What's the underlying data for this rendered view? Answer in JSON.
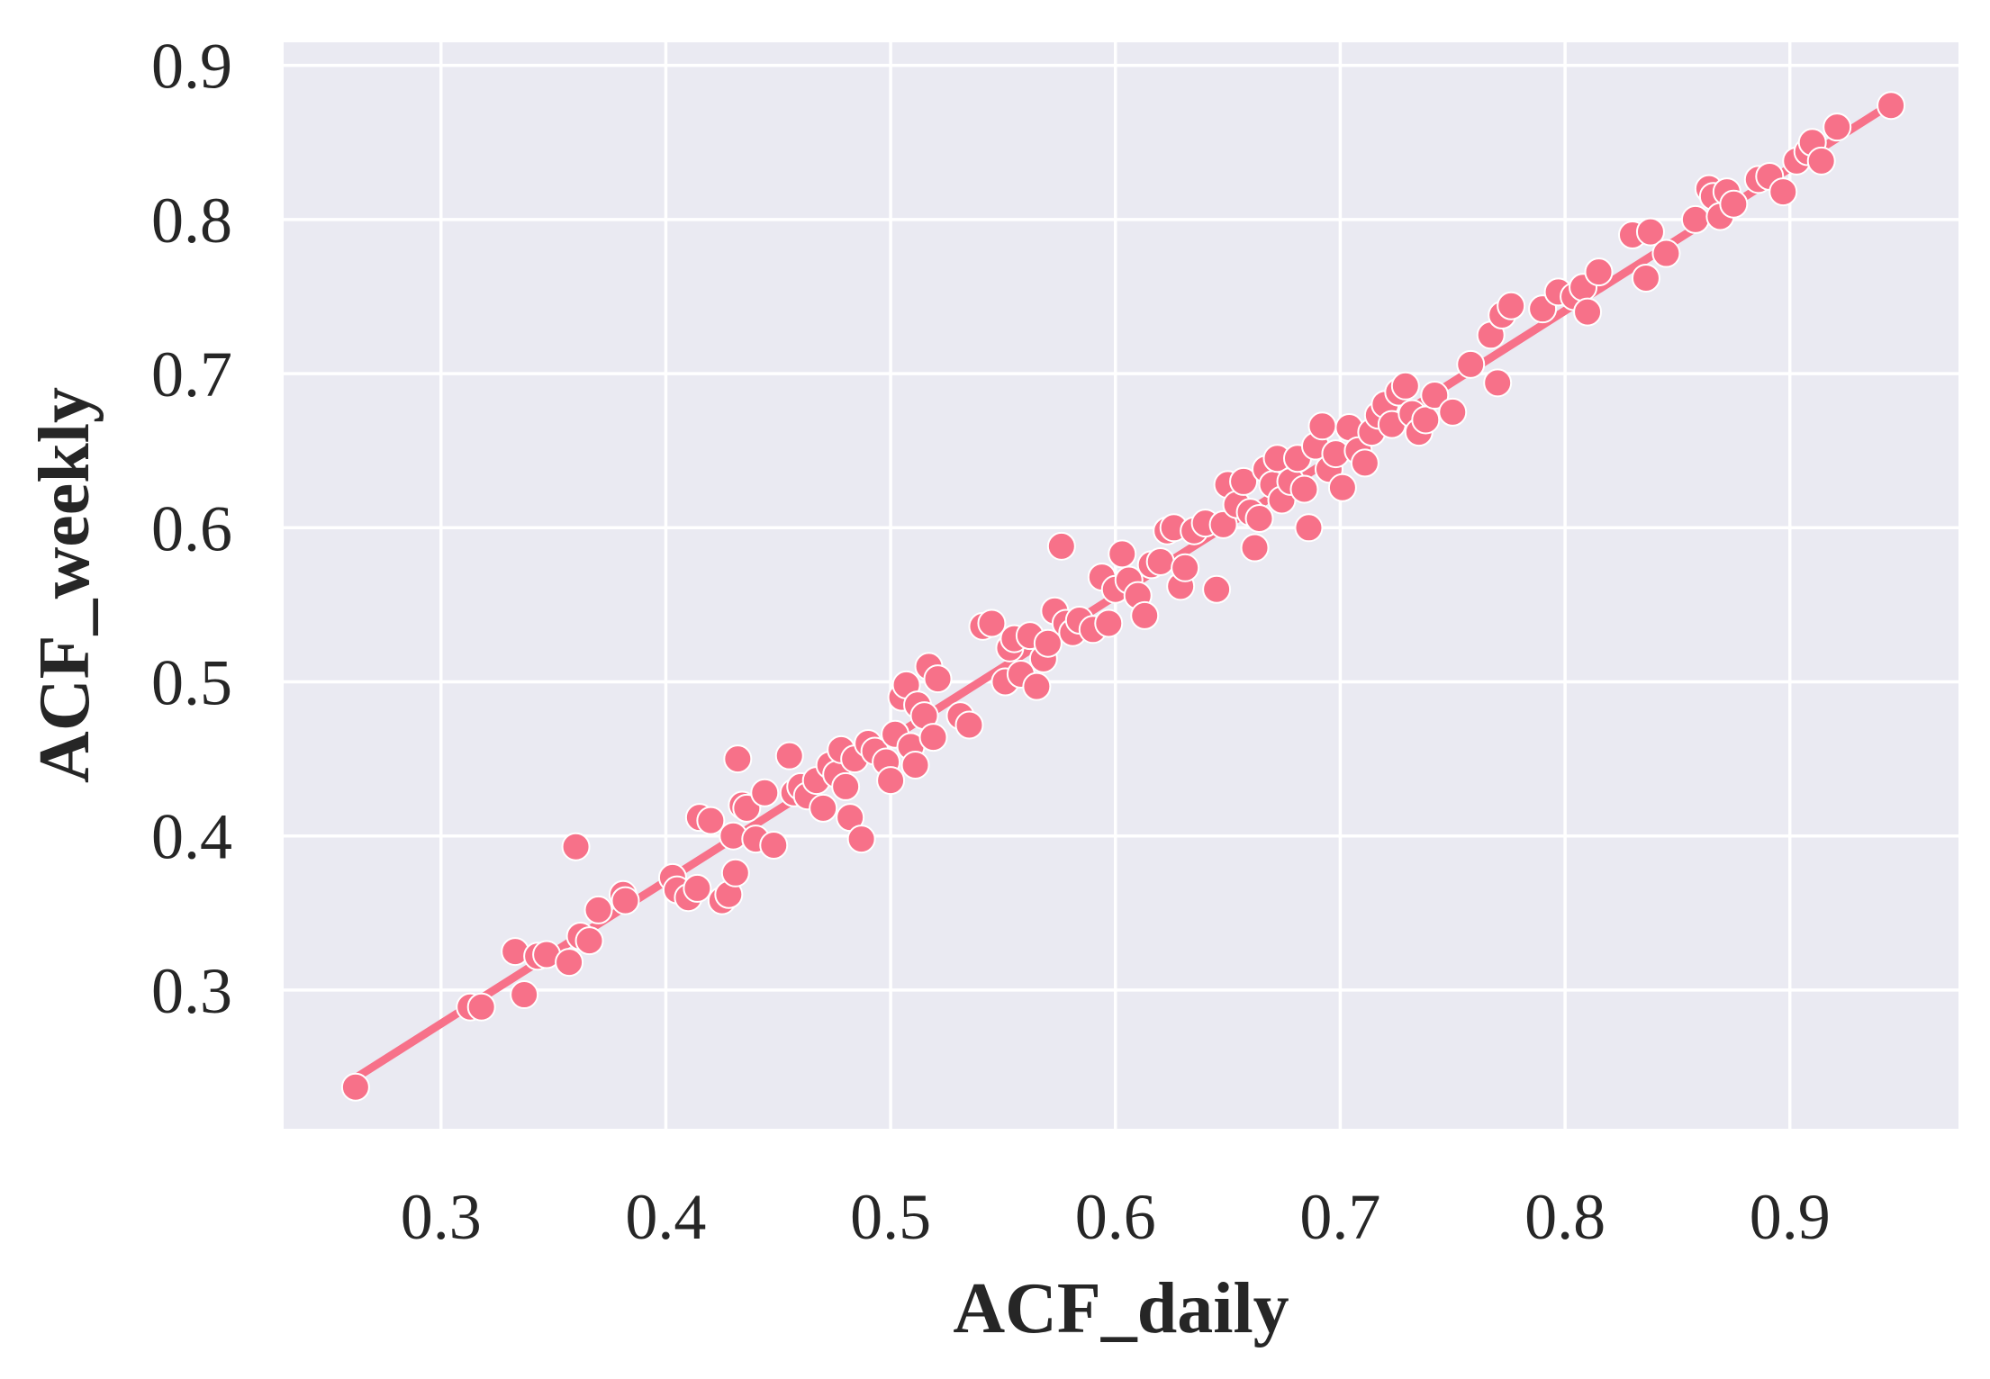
{
  "chart_data": {
    "type": "scatter",
    "xlabel": "ACF_daily",
    "ylabel": "ACF_weekly",
    "xlim": [
      0.23,
      0.975
    ],
    "ylim": [
      0.21,
      0.915
    ],
    "xticks": [
      0.3,
      0.4,
      0.5,
      0.6,
      0.7,
      0.8,
      0.9
    ],
    "yticks": [
      0.3,
      0.4,
      0.5,
      0.6,
      0.7,
      0.8,
      0.9
    ],
    "xtick_labels": [
      "0.3",
      "0.4",
      "0.5",
      "0.6",
      "0.7",
      "0.8",
      "0.9"
    ],
    "ytick_labels": [
      "0.3",
      "0.4",
      "0.5",
      "0.6",
      "0.7",
      "0.8",
      "0.9"
    ],
    "grid": true,
    "legend": "none",
    "colors": {
      "background": "#eaeaf2",
      "grid": "#ffffff",
      "point": "#f77189",
      "point_edge": "#ffffff",
      "line": "#f77189"
    },
    "trend_line": {
      "x": [
        0.262,
        0.945
      ],
      "y": [
        0.243,
        0.875
      ]
    },
    "points": [
      [
        0.262,
        0.237
      ],
      [
        0.313,
        0.289
      ],
      [
        0.318,
        0.289
      ],
      [
        0.333,
        0.325
      ],
      [
        0.337,
        0.297
      ],
      [
        0.343,
        0.322
      ],
      [
        0.347,
        0.323
      ],
      [
        0.357,
        0.318
      ],
      [
        0.36,
        0.393
      ],
      [
        0.362,
        0.335
      ],
      [
        0.366,
        0.332
      ],
      [
        0.37,
        0.352
      ],
      [
        0.381,
        0.362
      ],
      [
        0.382,
        0.358
      ],
      [
        0.403,
        0.373
      ],
      [
        0.405,
        0.365
      ],
      [
        0.41,
        0.36
      ],
      [
        0.414,
        0.366
      ],
      [
        0.415,
        0.412
      ],
      [
        0.42,
        0.41
      ],
      [
        0.425,
        0.358
      ],
      [
        0.428,
        0.362
      ],
      [
        0.43,
        0.4
      ],
      [
        0.431,
        0.376
      ],
      [
        0.432,
        0.45
      ],
      [
        0.434,
        0.42
      ],
      [
        0.436,
        0.418
      ],
      [
        0.44,
        0.398
      ],
      [
        0.444,
        0.428
      ],
      [
        0.448,
        0.394
      ],
      [
        0.455,
        0.452
      ],
      [
        0.457,
        0.428
      ],
      [
        0.46,
        0.432
      ],
      [
        0.463,
        0.426
      ],
      [
        0.467,
        0.436
      ],
      [
        0.47,
        0.418
      ],
      [
        0.473,
        0.446
      ],
      [
        0.476,
        0.44
      ],
      [
        0.478,
        0.456
      ],
      [
        0.48,
        0.432
      ],
      [
        0.482,
        0.412
      ],
      [
        0.484,
        0.45
      ],
      [
        0.487,
        0.398
      ],
      [
        0.49,
        0.46
      ],
      [
        0.493,
        0.455
      ],
      [
        0.498,
        0.448
      ],
      [
        0.5,
        0.436
      ],
      [
        0.502,
        0.466
      ],
      [
        0.505,
        0.49
      ],
      [
        0.507,
        0.498
      ],
      [
        0.509,
        0.458
      ],
      [
        0.511,
        0.446
      ],
      [
        0.512,
        0.485
      ],
      [
        0.515,
        0.478
      ],
      [
        0.517,
        0.51
      ],
      [
        0.519,
        0.464
      ],
      [
        0.521,
        0.502
      ],
      [
        0.531,
        0.478
      ],
      [
        0.535,
        0.472
      ],
      [
        0.541,
        0.536
      ],
      [
        0.545,
        0.538
      ],
      [
        0.551,
        0.5
      ],
      [
        0.553,
        0.522
      ],
      [
        0.555,
        0.528
      ],
      [
        0.558,
        0.505
      ],
      [
        0.562,
        0.53
      ],
      [
        0.565,
        0.497
      ],
      [
        0.568,
        0.515
      ],
      [
        0.57,
        0.525
      ],
      [
        0.573,
        0.546
      ],
      [
        0.576,
        0.588
      ],
      [
        0.578,
        0.538
      ],
      [
        0.581,
        0.532
      ],
      [
        0.584,
        0.54
      ],
      [
        0.59,
        0.534
      ],
      [
        0.594,
        0.568
      ],
      [
        0.597,
        0.538
      ],
      [
        0.6,
        0.56
      ],
      [
        0.603,
        0.583
      ],
      [
        0.606,
        0.566
      ],
      [
        0.61,
        0.556
      ],
      [
        0.613,
        0.543
      ],
      [
        0.616,
        0.576
      ],
      [
        0.62,
        0.578
      ],
      [
        0.623,
        0.598
      ],
      [
        0.626,
        0.6
      ],
      [
        0.629,
        0.562
      ],
      [
        0.631,
        0.574
      ],
      [
        0.635,
        0.598
      ],
      [
        0.64,
        0.603
      ],
      [
        0.645,
        0.56
      ],
      [
        0.648,
        0.602
      ],
      [
        0.65,
        0.628
      ],
      [
        0.654,
        0.615
      ],
      [
        0.657,
        0.63
      ],
      [
        0.66,
        0.61
      ],
      [
        0.662,
        0.587
      ],
      [
        0.664,
        0.606
      ],
      [
        0.667,
        0.638
      ],
      [
        0.67,
        0.628
      ],
      [
        0.672,
        0.645
      ],
      [
        0.674,
        0.618
      ],
      [
        0.678,
        0.63
      ],
      [
        0.681,
        0.645
      ],
      [
        0.684,
        0.625
      ],
      [
        0.686,
        0.6
      ],
      [
        0.689,
        0.653
      ],
      [
        0.692,
        0.666
      ],
      [
        0.695,
        0.638
      ],
      [
        0.698,
        0.648
      ],
      [
        0.701,
        0.626
      ],
      [
        0.704,
        0.665
      ],
      [
        0.708,
        0.65
      ],
      [
        0.711,
        0.642
      ],
      [
        0.714,
        0.662
      ],
      [
        0.717,
        0.673
      ],
      [
        0.72,
        0.68
      ],
      [
        0.723,
        0.667
      ],
      [
        0.726,
        0.688
      ],
      [
        0.729,
        0.692
      ],
      [
        0.732,
        0.674
      ],
      [
        0.735,
        0.662
      ],
      [
        0.738,
        0.67
      ],
      [
        0.742,
        0.686
      ],
      [
        0.75,
        0.675
      ],
      [
        0.758,
        0.706
      ],
      [
        0.767,
        0.725
      ],
      [
        0.77,
        0.694
      ],
      [
        0.772,
        0.738
      ],
      [
        0.776,
        0.744
      ],
      [
        0.79,
        0.742
      ],
      [
        0.797,
        0.753
      ],
      [
        0.804,
        0.75
      ],
      [
        0.808,
        0.756
      ],
      [
        0.81,
        0.74
      ],
      [
        0.815,
        0.766
      ],
      [
        0.83,
        0.79
      ],
      [
        0.836,
        0.762
      ],
      [
        0.838,
        0.792
      ],
      [
        0.845,
        0.778
      ],
      [
        0.858,
        0.8
      ],
      [
        0.864,
        0.82
      ],
      [
        0.866,
        0.815
      ],
      [
        0.869,
        0.802
      ],
      [
        0.872,
        0.818
      ],
      [
        0.875,
        0.81
      ],
      [
        0.886,
        0.826
      ],
      [
        0.891,
        0.828
      ],
      [
        0.897,
        0.818
      ],
      [
        0.903,
        0.838
      ],
      [
        0.908,
        0.844
      ],
      [
        0.91,
        0.85
      ],
      [
        0.914,
        0.838
      ],
      [
        0.921,
        0.86
      ],
      [
        0.945,
        0.874
      ]
    ]
  }
}
